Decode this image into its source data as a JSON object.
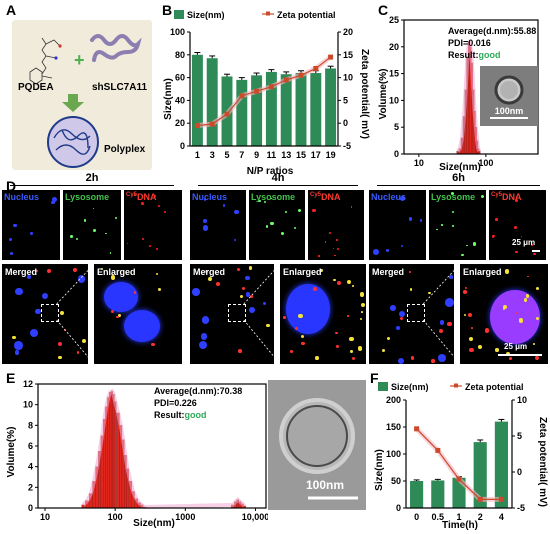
{
  "panels": {
    "a": "A",
    "b": "B",
    "c": "C",
    "d": "D",
    "e": "E",
    "f": "F"
  },
  "panel_a": {
    "label_left": "PQDEA",
    "label_right": "shSLC7A11",
    "label_bottom": "Polyplex"
  },
  "panel_b_data": {
    "type": "bar",
    "categories": [
      "1",
      "3",
      "5",
      "7",
      "9",
      "11",
      "13",
      "15",
      "17",
      "19"
    ],
    "xlabel": "N/P ratios",
    "ylabel": "Size(nm)",
    "y2label": "Zeta potential( mV)",
    "ylim": [
      0,
      100
    ],
    "y2lim": [
      -5,
      20
    ],
    "yticks": [
      "0",
      "20",
      "40",
      "60",
      "80",
      "100"
    ],
    "y2ticks": [
      "-5",
      "0",
      "5",
      "10",
      "15",
      "20"
    ],
    "series": [
      {
        "name": "Size(nm)",
        "axis": "left",
        "values": [
          80,
          77,
          61,
          58,
          62,
          65,
          63,
          64,
          64,
          68
        ],
        "errors": [
          2,
          2,
          2,
          2,
          2,
          2,
          2,
          2,
          2,
          2
        ]
      },
      {
        "name": "Zeta potential",
        "axis": "right",
        "values": [
          -0.5,
          -0.2,
          2,
          6,
          7,
          8,
          9.5,
          10.5,
          12,
          14.5
        ]
      }
    ],
    "colors": {
      "bar": "#2e8b57",
      "line": "#cc4a2a"
    }
  },
  "panel_c_data": {
    "type": "bar",
    "bins": [
      38,
      41,
      44,
      47,
      50,
      53,
      56,
      59,
      62,
      65,
      68,
      71,
      74,
      77,
      80
    ],
    "values": [
      0.5,
      1,
      3,
      7,
      12,
      18,
      21,
      20,
      17,
      12,
      8,
      5,
      2.5,
      1,
      0.5
    ],
    "ylabel": "Volume(%)",
    "xlabel": "Size(nm)",
    "xticks": [
      "10",
      "100"
    ],
    "yticks": [
      "0",
      "5",
      "10",
      "15",
      "20",
      "25"
    ],
    "average": "Average(d.nm):55.88",
    "pdi": "PDI=0.016",
    "result_prefix": "Result:",
    "result_value": "good",
    "scale": "100nm",
    "colors": {
      "bar": "#e0261d",
      "result": "#2eaa5a"
    }
  },
  "panel_d": {
    "times": [
      "2h",
      "4h",
      "6h"
    ],
    "channels": {
      "nucleus": "Nucleus",
      "lysosome": "Lysosome",
      "dna_sup": "Cy5",
      "dna": "DNA"
    },
    "merged": "Merged",
    "enlarged": "Enlarged",
    "scale_small": "25 μm",
    "scale_big": "25 μm"
  },
  "panel_e_data": {
    "type": "bar",
    "ylabel": "Volume(%)",
    "xlabel": "Size(nm)",
    "xticks": [
      "10",
      "100",
      "1000",
      "10,000"
    ],
    "yticks": [
      "0",
      "2",
      "4",
      "6",
      "8",
      "10",
      "12"
    ],
    "bins": [
      35,
      40,
      45,
      50,
      55,
      60,
      65,
      70,
      75,
      80,
      85,
      90,
      95,
      100,
      110,
      120,
      130,
      140,
      150,
      165,
      180,
      200,
      220,
      240,
      260,
      4800,
      5200,
      5600,
      6000,
      6500,
      7000
    ],
    "values": [
      0.3,
      0.7,
      1.4,
      2.6,
      4,
      5.5,
      7,
      8.6,
      9.8,
      10.7,
      11.2,
      11.3,
      11,
      10.3,
      9.2,
      8,
      6.6,
      5.1,
      3.8,
      2.6,
      1.6,
      0.9,
      0.5,
      0.3,
      0.1,
      0.3,
      0.6,
      0.8,
      0.6,
      0.4,
      0.2
    ],
    "average": "Average(d.nm):70.38",
    "pdi": "PDI=0.226",
    "result_prefix": "Result:",
    "result_value": "good",
    "scale": "100nm",
    "colors": {
      "bar": "#e0261d",
      "result": "#2eaa5a"
    }
  },
  "panel_f_data": {
    "type": "bar",
    "categories": [
      "0",
      "0.5",
      "1",
      "2",
      "4"
    ],
    "xlabel": "Time(h)",
    "ylabel": "Size(nm)",
    "y2label": "Zeta potential( mV)",
    "ylim": [
      0,
      200
    ],
    "y2lim": [
      -5,
      10
    ],
    "yticks": [
      "0",
      "50",
      "100",
      "150",
      "200"
    ],
    "y2ticks": [
      "-5",
      "0",
      "5",
      "10"
    ],
    "series": [
      {
        "name": "Size(nm)",
        "axis": "left",
        "values": [
          50,
          51,
          56,
          122,
          160
        ],
        "errors": [
          2,
          2,
          2,
          4,
          4
        ]
      },
      {
        "name": "Zeta potential",
        "axis": "right",
        "values": [
          6,
          3,
          -1,
          -3.8,
          -3.8
        ]
      }
    ],
    "colors": {
      "bar": "#2e8b57",
      "line": "#cc4a2a"
    }
  }
}
